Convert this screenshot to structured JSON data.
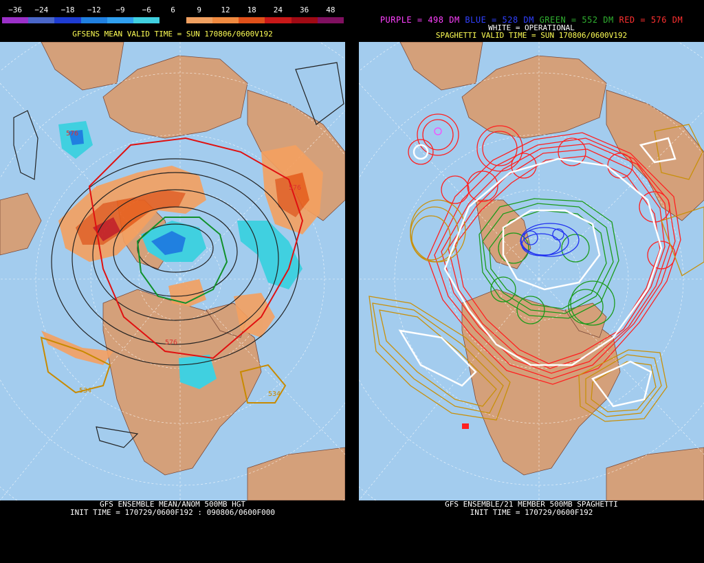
{
  "left": {
    "colorbar": {
      "labels": [
        "−36",
        "−24",
        "−18",
        "−12",
        "−9",
        "−6",
        "6",
        "9",
        "12",
        "18",
        "24",
        "36",
        "48"
      ],
      "colors": [
        "#9b30c8",
        "#4a66c8",
        "#1e3cd2",
        "#2080e0",
        "#30a0f0",
        "#40d0e0",
        "#000000",
        "#f0a060",
        "#f08a40",
        "#e0501a",
        "#c81818",
        "#a00a14",
        "#801060"
      ]
    },
    "valid_title": "GFSENS MEAN VALID TIME = SUN 170806/0600V192",
    "contour_labels": [
      "576",
      "576",
      "576",
      "534",
      "534"
    ],
    "footer_line1": "GFS ENSEMBLE MEAN/ANOM 500MB HGT",
    "footer_line2": "INIT TIME = 170729/0600F192 : 090806/0600F000"
  },
  "right": {
    "legend": {
      "purple": {
        "text": "PURPLE = 498 DM",
        "color": "#ff40ff"
      },
      "blue": {
        "text": "BLUE = 528 DM",
        "color": "#3040ff"
      },
      "green": {
        "text": "GREEN = 552 DM",
        "color": "#30b030"
      },
      "red": {
        "text": "RED = 576 DM",
        "color": "#ff3030"
      }
    },
    "operational": "WHITE = OPERATIONAL",
    "valid_title": "SPAGHETTI VALID TIME = SUN 170806/0600V192",
    "footer_line1": "GFS ENSEMBLE/21 MEMBER 500MB SPAGHETTI",
    "footer_line2": "INIT TIME = 170729/0600F192"
  },
  "colors": {
    "ocean": "#a3ccee",
    "land": "#d4a07a",
    "grid": "#ffffff",
    "contour": "#222222"
  }
}
